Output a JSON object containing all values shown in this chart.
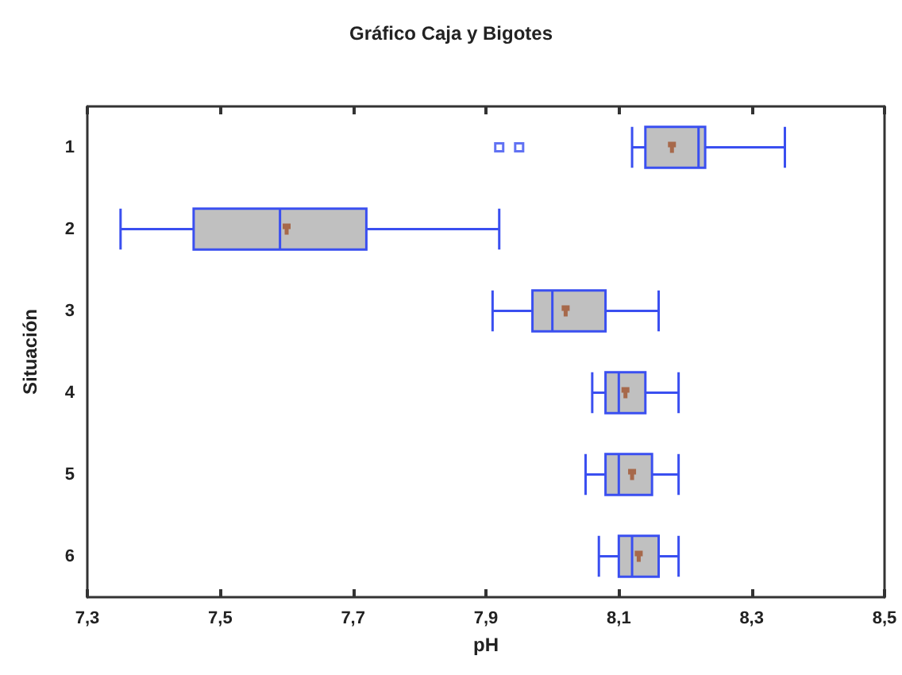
{
  "chart_data": {
    "type": "box",
    "title": "Gráfico Caja y Bigotes",
    "xlabel": "pH",
    "ylabel": "Situación",
    "orientation": "horizontal",
    "categories": [
      "1",
      "2",
      "3",
      "4",
      "5",
      "6"
    ],
    "series": [
      {
        "color": "#3a4ff0",
        "boxes": [
          {
            "low": 8.12,
            "q1": 8.14,
            "median": 8.22,
            "q3": 8.23,
            "high": 8.35,
            "mean": 8.18,
            "outliers": [
              7.92,
              7.95
            ]
          },
          {
            "low": 7.35,
            "q1": 7.46,
            "median": 7.59,
            "q3": 7.72,
            "high": 7.92,
            "mean": 7.6
          },
          {
            "low": 7.91,
            "q1": 7.97,
            "median": 8.0,
            "q3": 8.08,
            "high": 8.16,
            "mean": 8.02
          },
          {
            "low": 8.06,
            "q1": 8.08,
            "median": 8.1,
            "q3": 8.14,
            "high": 8.19,
            "mean": 8.11
          },
          {
            "low": 8.05,
            "q1": 8.08,
            "median": 8.1,
            "q3": 8.15,
            "high": 8.19,
            "mean": 8.12
          },
          {
            "low": 8.07,
            "q1": 8.1,
            "median": 8.12,
            "q3": 8.16,
            "high": 8.19,
            "mean": 8.13
          }
        ]
      }
    ],
    "xlim": [
      7.3,
      8.5
    ],
    "xticks": [
      {
        "value": 7.3,
        "label": "7,3"
      },
      {
        "value": 7.5,
        "label": "7,5"
      },
      {
        "value": 7.7,
        "label": "7,7"
      },
      {
        "value": 7.9,
        "label": "7,9"
      },
      {
        "value": 8.1,
        "label": "8,1"
      },
      {
        "value": 8.3,
        "label": "8,3"
      },
      {
        "value": 8.5,
        "label": "8,5"
      }
    ],
    "grid": false
  }
}
